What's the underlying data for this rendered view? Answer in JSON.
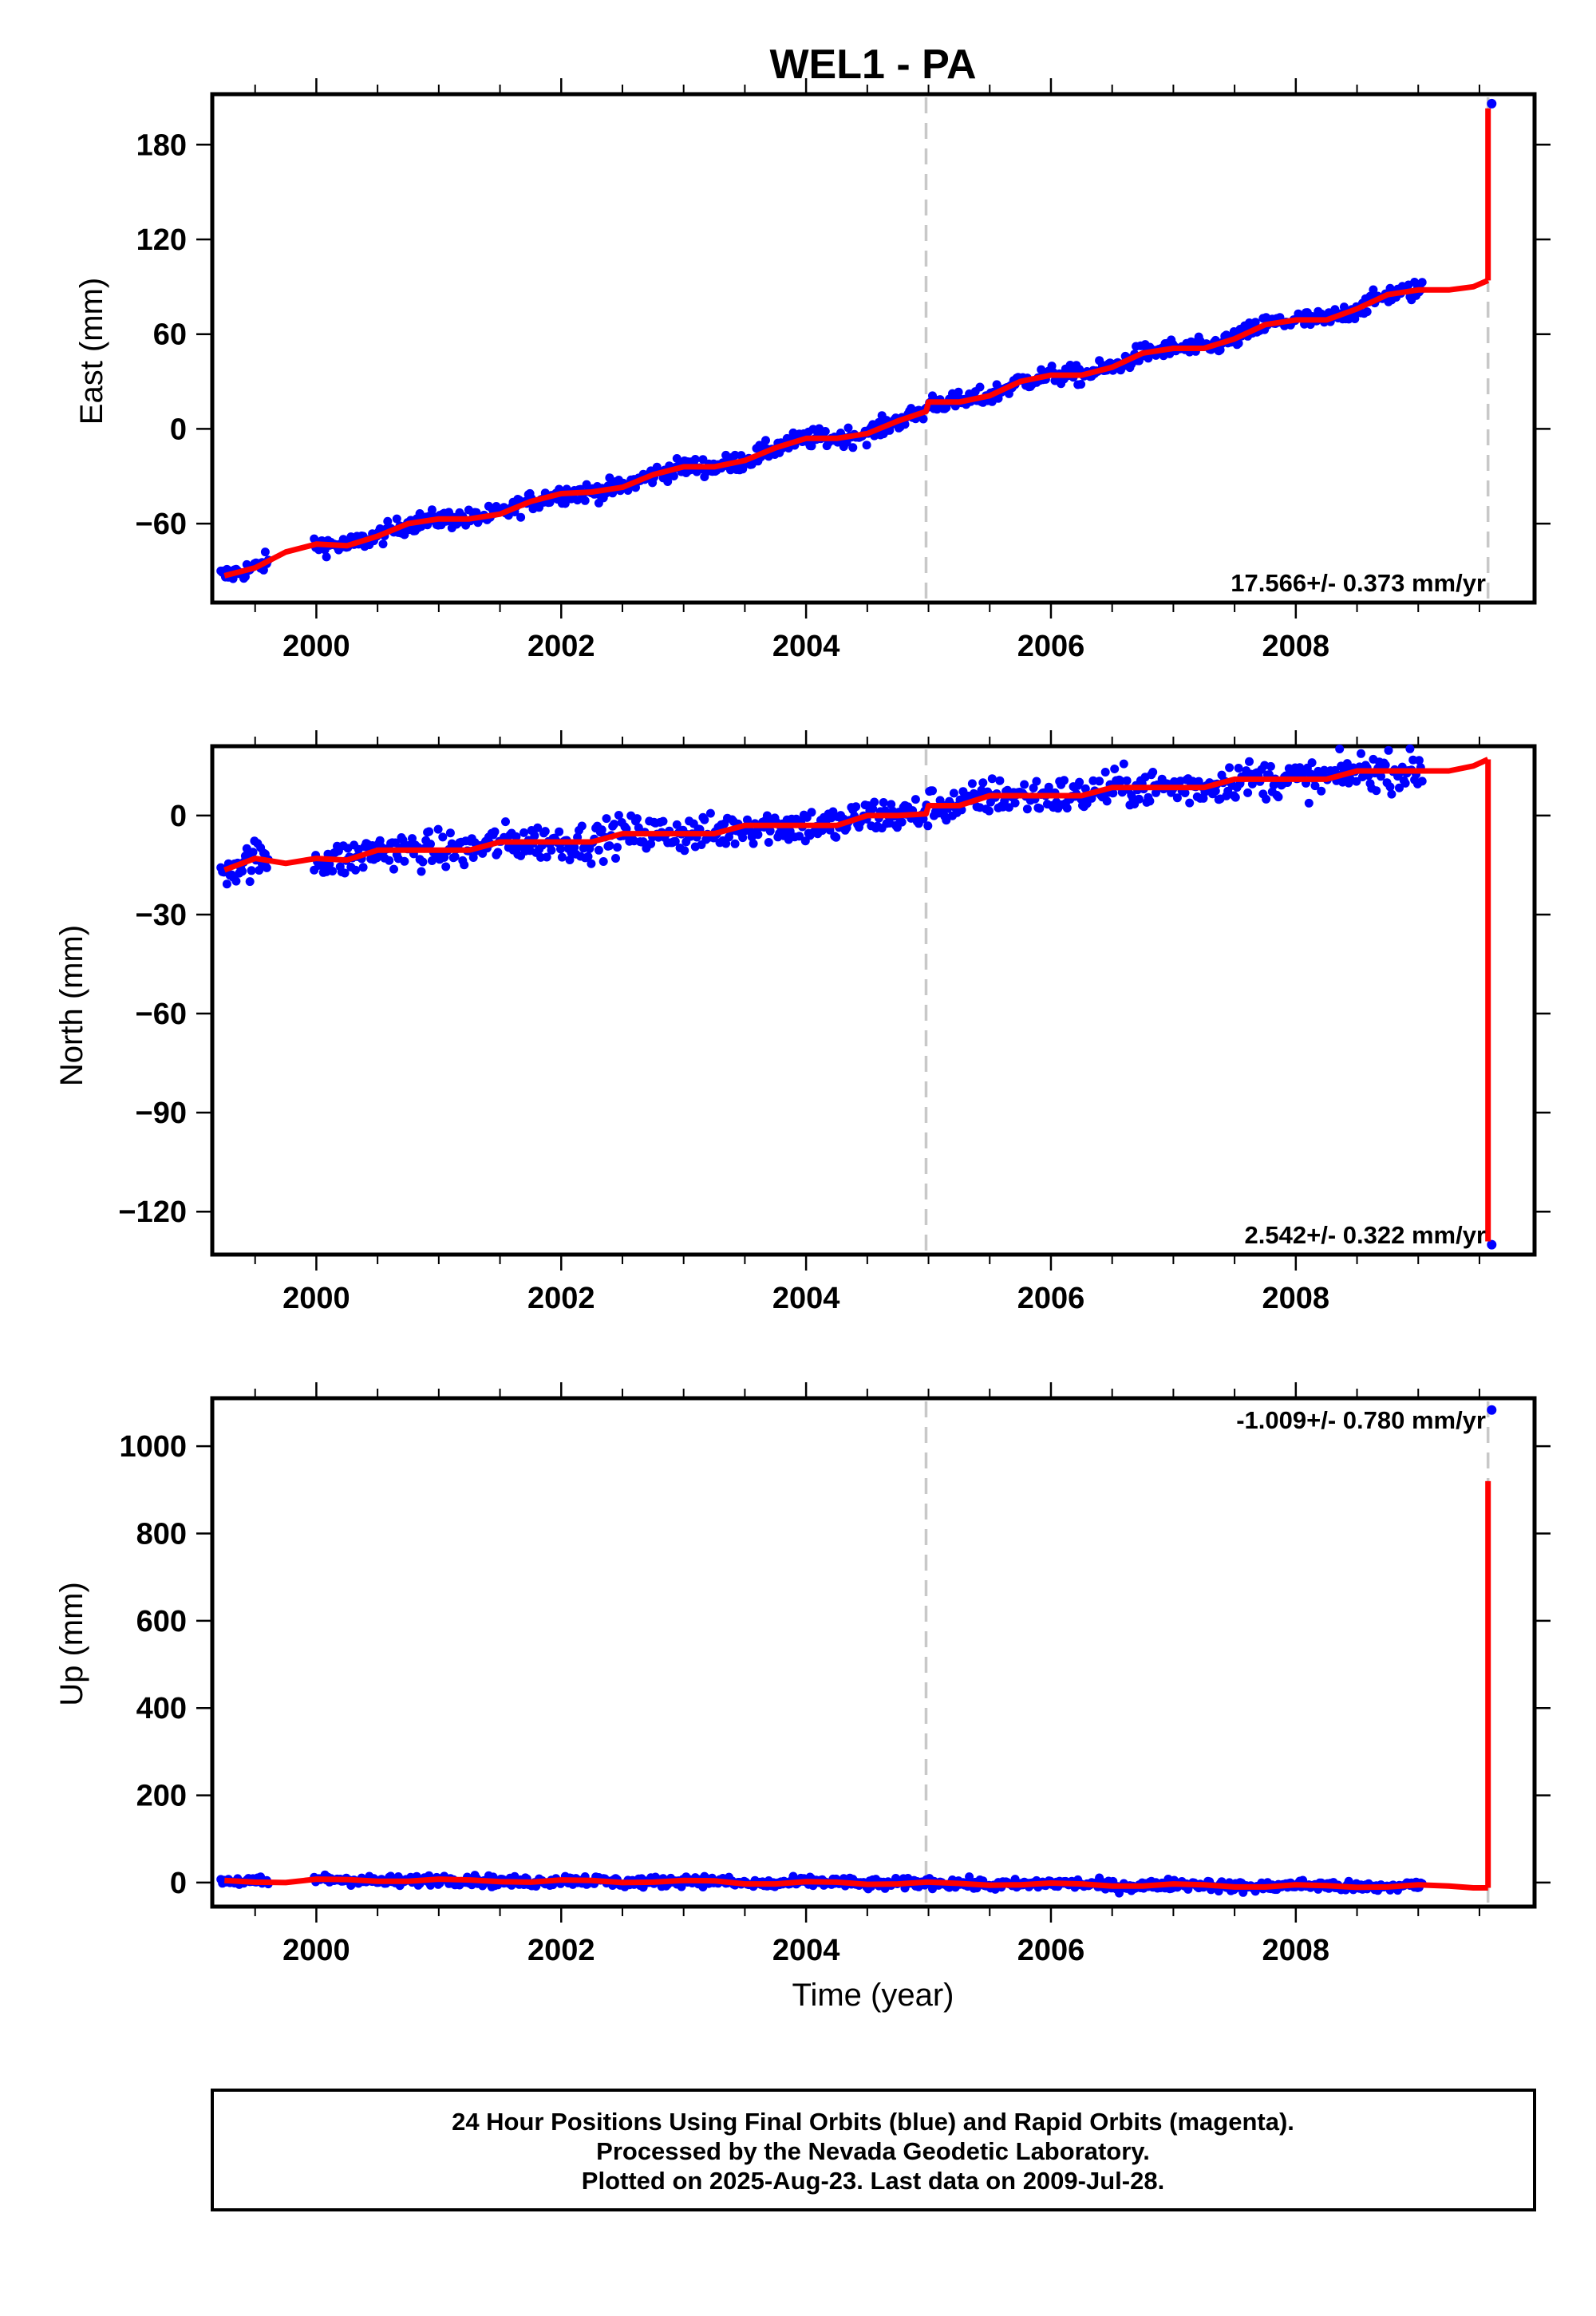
{
  "title": "WEL1 - PA",
  "xlabel": "Time (year)",
  "colors": {
    "final_points": "#0000ff",
    "model_line": "#ff0000",
    "break_line": "#c8c8c8",
    "frame": "#000000"
  },
  "footer": [
    "24 Hour Positions Using Final Orbits (blue) and Rapid Orbits (magenta).",
    "Processed by the Nevada Geodetic Laboratory.",
    "Plotted on 2025-Aug-23. Last data on 2009-Jul-28."
  ],
  "chart_data": [
    {
      "type": "scatter",
      "component": "east",
      "ylabel": "East (mm)",
      "rate_label": "17.566+/- 0.373 mm/yr",
      "xlim": [
        1999.15,
        2009.95
      ],
      "ylim": [
        -110,
        212
      ],
      "xticks": [
        2000,
        2002,
        2004,
        2006,
        2008
      ],
      "yticks": [
        -60,
        0,
        60,
        120,
        180
      ],
      "ytick_labels": [
        "−60",
        "0",
        "60",
        "120",
        "180"
      ],
      "breaks": [
        2004.98,
        2009.57
      ],
      "trend_points": [
        [
          1999.25,
          -93
        ],
        [
          1999.5,
          -88
        ],
        [
          1999.75,
          -78
        ],
        [
          2000.0,
          -73
        ],
        [
          2000.25,
          -74
        ],
        [
          2000.5,
          -68
        ],
        [
          2000.75,
          -60
        ],
        [
          2001.0,
          -57
        ],
        [
          2001.25,
          -57
        ],
        [
          2001.5,
          -54
        ],
        [
          2001.75,
          -46
        ],
        [
          2002.0,
          -41
        ],
        [
          2002.25,
          -40
        ],
        [
          2002.5,
          -37
        ],
        [
          2002.75,
          -29
        ],
        [
          2003.0,
          -24
        ],
        [
          2003.25,
          -24
        ],
        [
          2003.5,
          -20
        ],
        [
          2003.75,
          -12
        ],
        [
          2004.0,
          -6
        ],
        [
          2004.25,
          -6
        ],
        [
          2004.5,
          -3
        ],
        [
          2004.75,
          5
        ],
        [
          2004.98,
          11
        ],
        [
          2005.0,
          17
        ],
        [
          2005.25,
          17
        ],
        [
          2005.5,
          21
        ],
        [
          2005.75,
          30
        ],
        [
          2006.0,
          34
        ],
        [
          2006.25,
          34
        ],
        [
          2006.5,
          39
        ],
        [
          2006.75,
          48
        ],
        [
          2007.0,
          51
        ],
        [
          2007.25,
          51
        ],
        [
          2007.5,
          57
        ],
        [
          2007.75,
          66
        ],
        [
          2008.0,
          69
        ],
        [
          2008.25,
          69
        ],
        [
          2008.5,
          76
        ],
        [
          2008.75,
          85
        ],
        [
          2009.0,
          88
        ],
        [
          2009.25,
          88
        ],
        [
          2009.45,
          90
        ],
        [
          2009.57,
          94
        ]
      ],
      "jump_line": [
        2009.57,
        94,
        203
      ],
      "outlier_point": [
        2009.6,
        206
      ],
      "gap": [
        2009.05,
        2009.55
      ]
    },
    {
      "type": "scatter",
      "component": "north",
      "ylabel": "North (mm)",
      "rate_label": "2.542+/- 0.322 mm/yr",
      "xlim": [
        1999.15,
        2009.95
      ],
      "ylim": [
        -133,
        21
      ],
      "xticks": [
        2000,
        2002,
        2004,
        2006,
        2008
      ],
      "yticks": [
        -120,
        -90,
        -60,
        -30,
        0
      ],
      "ytick_labels": [
        "−120",
        "−90",
        "−60",
        "−30",
        "0"
      ],
      "breaks": [
        2004.98
      ],
      "trend_points": [
        [
          1999.25,
          -16.5
        ],
        [
          1999.5,
          -13
        ],
        [
          1999.75,
          -14.5
        ],
        [
          2000.0,
          -13
        ],
        [
          2000.25,
          -13.5
        ],
        [
          2000.5,
          -10.5
        ],
        [
          2000.75,
          -10.5
        ],
        [
          2001.0,
          -10.5
        ],
        [
          2001.25,
          -10.5
        ],
        [
          2001.5,
          -8
        ],
        [
          2001.75,
          -8
        ],
        [
          2002.0,
          -8
        ],
        [
          2002.25,
          -8
        ],
        [
          2002.5,
          -5.5
        ],
        [
          2002.75,
          -5.5
        ],
        [
          2003.0,
          -5.5
        ],
        [
          2003.25,
          -5.5
        ],
        [
          2003.5,
          -3
        ],
        [
          2003.75,
          -3
        ],
        [
          2004.0,
          -3
        ],
        [
          2004.25,
          -3
        ],
        [
          2004.5,
          0
        ],
        [
          2004.75,
          0
        ],
        [
          2004.98,
          0.5
        ],
        [
          2005.0,
          3
        ],
        [
          2005.25,
          3
        ],
        [
          2005.5,
          6
        ],
        [
          2005.75,
          6
        ],
        [
          2006.0,
          6
        ],
        [
          2006.25,
          6
        ],
        [
          2006.5,
          8.5
        ],
        [
          2006.75,
          8.5
        ],
        [
          2007.0,
          8.5
        ],
        [
          2007.25,
          8.5
        ],
        [
          2007.5,
          11
        ],
        [
          2007.75,
          11
        ],
        [
          2008.0,
          11
        ],
        [
          2008.25,
          11
        ],
        [
          2008.5,
          13.5
        ],
        [
          2008.75,
          13.5
        ],
        [
          2009.0,
          13.5
        ],
        [
          2009.25,
          13.5
        ],
        [
          2009.45,
          15
        ],
        [
          2009.57,
          17
        ]
      ],
      "jump_line": [
        2009.57,
        17,
        -129
      ],
      "outlier_point": [
        2009.6,
        -130
      ],
      "gap": [
        2009.05,
        2009.55
      ]
    },
    {
      "type": "scatter",
      "component": "up",
      "ylabel": "Up (mm)",
      "rate_label": "-1.009+/- 0.780 mm/yr",
      "xlim": [
        1999.15,
        2009.95
      ],
      "ylim": [
        -55,
        1110
      ],
      "xticks": [
        2000,
        2002,
        2004,
        2006,
        2008
      ],
      "yticks": [
        0,
        200,
        400,
        600,
        800,
        1000
      ],
      "ytick_labels": [
        "0",
        "200",
        "400",
        "600",
        "800",
        "1000"
      ],
      "breaks": [
        2004.98,
        2009.57
      ],
      "trend_points": [
        [
          1999.25,
          5
        ],
        [
          1999.5,
          1
        ],
        [
          1999.75,
          0
        ],
        [
          2000.0,
          8
        ],
        [
          2000.25,
          7
        ],
        [
          2000.5,
          3
        ],
        [
          2000.75,
          3
        ],
        [
          2001.0,
          8
        ],
        [
          2001.25,
          6
        ],
        [
          2001.5,
          2
        ],
        [
          2001.75,
          1
        ],
        [
          2002.0,
          6
        ],
        [
          2002.25,
          5
        ],
        [
          2002.5,
          0
        ],
        [
          2002.75,
          1
        ],
        [
          2003.0,
          5
        ],
        [
          2003.25,
          4
        ],
        [
          2003.5,
          -3
        ],
        [
          2003.75,
          -3
        ],
        [
          2004.0,
          2
        ],
        [
          2004.25,
          1
        ],
        [
          2004.5,
          -4
        ],
        [
          2004.75,
          -3
        ],
        [
          2004.98,
          1
        ],
        [
          2005.0,
          1
        ],
        [
          2005.25,
          -2
        ],
        [
          2005.5,
          -6
        ],
        [
          2005.75,
          -5
        ],
        [
          2006.0,
          -1
        ],
        [
          2006.25,
          -3
        ],
        [
          2006.5,
          -8
        ],
        [
          2006.75,
          -8
        ],
        [
          2007.0,
          -3
        ],
        [
          2007.25,
          -5
        ],
        [
          2007.5,
          -10
        ],
        [
          2007.75,
          -10
        ],
        [
          2008.0,
          -5
        ],
        [
          2008.25,
          -7
        ],
        [
          2008.5,
          -11
        ],
        [
          2008.75,
          -10
        ],
        [
          2009.0,
          -5
        ],
        [
          2009.25,
          -8
        ],
        [
          2009.45,
          -12
        ],
        [
          2009.57,
          -12
        ]
      ],
      "jump_line": [
        2009.57,
        -12,
        920
      ],
      "outlier_point": [
        2009.6,
        1083
      ],
      "gap": [
        2009.05,
        2009.55
      ]
    }
  ]
}
